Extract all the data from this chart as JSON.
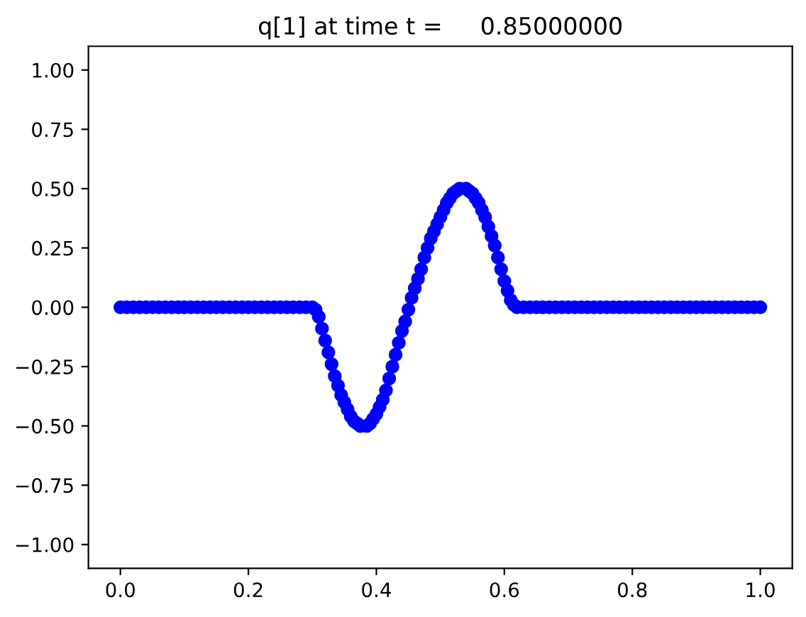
{
  "chart_data": {
    "type": "scatter",
    "title": "q[1] at time t =     0.85000000",
    "x": [
      0.0,
      0.01,
      0.02,
      0.03,
      0.04,
      0.05,
      0.06,
      0.07,
      0.08,
      0.09,
      0.1,
      0.11,
      0.12,
      0.13,
      0.14,
      0.15,
      0.16,
      0.17,
      0.18,
      0.19,
      0.2,
      0.21,
      0.22,
      0.23,
      0.24,
      0.25,
      0.26,
      0.27,
      0.28,
      0.29,
      0.3,
      0.305,
      0.31,
      0.315,
      0.32,
      0.325,
      0.33,
      0.335,
      0.34,
      0.345,
      0.35,
      0.355,
      0.36,
      0.365,
      0.37,
      0.375,
      0.385,
      0.39,
      0.395,
      0.4,
      0.405,
      0.41,
      0.415,
      0.42,
      0.425,
      0.43,
      0.435,
      0.44,
      0.445,
      0.45,
      0.455,
      0.46,
      0.465,
      0.47,
      0.475,
      0.48,
      0.485,
      0.49,
      0.495,
      0.5,
      0.505,
      0.51,
      0.515,
      0.52,
      0.525,
      0.53,
      0.54,
      0.545,
      0.55,
      0.555,
      0.56,
      0.565,
      0.57,
      0.575,
      0.58,
      0.585,
      0.59,
      0.595,
      0.6,
      0.605,
      0.61,
      0.615,
      0.62,
      0.63,
      0.64,
      0.65,
      0.66,
      0.67,
      0.68,
      0.69,
      0.7,
      0.71,
      0.72,
      0.73,
      0.74,
      0.75,
      0.76,
      0.77,
      0.78,
      0.79,
      0.8,
      0.81,
      0.82,
      0.83,
      0.84,
      0.85,
      0.86,
      0.87,
      0.88,
      0.89,
      0.9,
      0.91,
      0.92,
      0.93,
      0.94,
      0.95,
      0.96,
      0.97,
      0.98,
      0.99,
      1.0
    ],
    "series": [
      {
        "color": "#0000ff",
        "values": [
          0,
          0,
          0,
          0,
          0,
          0,
          0,
          0,
          0,
          0,
          0,
          0,
          0,
          0,
          0,
          0,
          0,
          0,
          0,
          0,
          0,
          0,
          0,
          0,
          0,
          0,
          0,
          0,
          0,
          0,
          0,
          -0.01,
          -0.04,
          -0.09,
          -0.14,
          -0.19,
          -0.24,
          -0.29,
          -0.33,
          -0.37,
          -0.4,
          -0.43,
          -0.46,
          -0.48,
          -0.49,
          -0.5,
          -0.5,
          -0.49,
          -0.47,
          -0.45,
          -0.42,
          -0.39,
          -0.35,
          -0.3,
          -0.25,
          -0.2,
          -0.15,
          -0.1,
          -0.06,
          -0.01,
          0.04,
          0.08,
          0.12,
          0.16,
          0.21,
          0.25,
          0.29,
          0.32,
          0.35,
          0.38,
          0.41,
          0.44,
          0.46,
          0.48,
          0.49,
          0.5,
          0.5,
          0.49,
          0.48,
          0.46,
          0.44,
          0.41,
          0.38,
          0.34,
          0.3,
          0.26,
          0.21,
          0.16,
          0.11,
          0.07,
          0.03,
          0.01,
          0,
          0,
          0,
          0,
          0,
          0,
          0,
          0,
          0,
          0,
          0,
          0,
          0,
          0,
          0,
          0,
          0,
          0,
          0,
          0,
          0,
          0,
          0,
          0,
          0,
          0,
          0,
          0,
          0,
          0,
          0,
          0,
          0,
          0,
          0,
          0,
          0,
          0,
          0
        ]
      }
    ],
    "xlim": [
      -0.05,
      1.05
    ],
    "ylim": [
      -1.1,
      1.1
    ],
    "xticks": [
      {
        "value": 0,
        "label": "0.0"
      },
      {
        "value": 0.2,
        "label": "0.2"
      },
      {
        "value": 0.4,
        "label": "0.4"
      },
      {
        "value": 0.6,
        "label": "0.6"
      },
      {
        "value": 0.8,
        "label": "0.8"
      },
      {
        "value": 1,
        "label": "1.0"
      }
    ],
    "yticks": [
      {
        "value": -1,
        "label": "−1.00"
      },
      {
        "value": -0.75,
        "label": "−0.75"
      },
      {
        "value": -0.5,
        "label": "−0.50"
      },
      {
        "value": -0.25,
        "label": "−0.25"
      },
      {
        "value": 0,
        "label": "0.00"
      },
      {
        "value": 0.25,
        "label": "0.25"
      },
      {
        "value": 0.5,
        "label": "0.50"
      },
      {
        "value": 0.75,
        "label": "0.75"
      },
      {
        "value": 1,
        "label": "1.00"
      }
    ],
    "marker": "circle",
    "grid": false
  }
}
